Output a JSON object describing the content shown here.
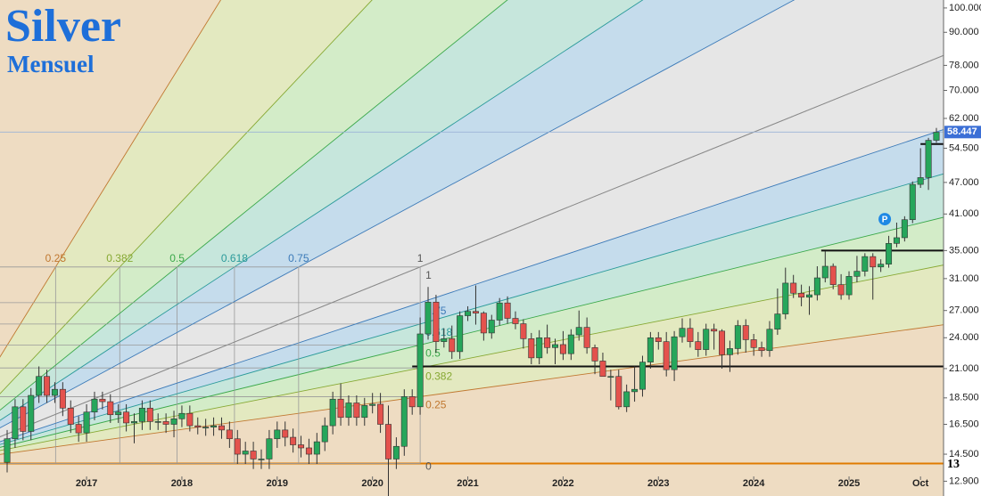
{
  "chart_data": {
    "type": "candlestick",
    "title": "Silver",
    "subtitle": "Mensuel",
    "corner_label": "13",
    "log_y": true,
    "grid": false,
    "up_color": "#26a65b",
    "down_color": "#e4524d",
    "xlim": [
      -0.9,
      117.9
    ],
    "ylim": [
      12.1,
      103.5
    ],
    "xticks": [
      {
        "value": 10,
        "label": "2017"
      },
      {
        "value": 22,
        "label": "2018"
      },
      {
        "value": 34,
        "label": "2019"
      },
      {
        "value": 46,
        "label": "2020"
      },
      {
        "value": 58,
        "label": "2021"
      },
      {
        "value": 70,
        "label": "2022"
      },
      {
        "value": 82,
        "label": "2023"
      },
      {
        "value": 94,
        "label": "2024"
      },
      {
        "value": 106,
        "label": "2025"
      },
      {
        "value": 115,
        "label": "Oct"
      }
    ],
    "yticks": [
      {
        "value": 100,
        "label": "100.000"
      },
      {
        "value": 90,
        "label": "90.000"
      },
      {
        "value": 78,
        "label": "78.000"
      },
      {
        "value": 70,
        "label": "70.000"
      },
      {
        "value": 62,
        "label": "62.000"
      },
      {
        "value": 54.5,
        "label": "54.500"
      },
      {
        "value": 47,
        "label": "47.000"
      },
      {
        "value": 41,
        "label": "41.000"
      },
      {
        "value": 35,
        "label": "35.000"
      },
      {
        "value": 31,
        "label": "31.000"
      },
      {
        "value": 27,
        "label": "27.000"
      },
      {
        "value": 24,
        "label": "24.000"
      },
      {
        "value": 21,
        "label": "21.000"
      },
      {
        "value": 18.5,
        "label": "18.500"
      },
      {
        "value": 16.5,
        "label": "16.500"
      },
      {
        "value": 14.5,
        "label": "14.500"
      },
      {
        "value": 12.9,
        "label": "12.900"
      }
    ],
    "last_price": 58.447,
    "last_price_color": "#3b6fd6",
    "annotation": {
      "text": "P",
      "x": 110.5,
      "y": 40.1,
      "color": "#1e88e5"
    },
    "hlines": [
      {
        "value": 21.2,
        "start": 51
      },
      {
        "value": 35.0,
        "start": 102.5
      },
      {
        "value": 55.5,
        "start": 115
      }
    ],
    "fan": {
      "t0": -9.2,
      "t1": 52,
      "p0": 13.93,
      "p1": 32.6,
      "levels": [
        0,
        0.25,
        0.382,
        0.5,
        0.618,
        0.75,
        1
      ],
      "colors": [
        "#e07b00",
        "#c07830",
        "#86a832",
        "#3aa84a",
        "#2a9a9a",
        "#3c7ab8",
        "#8a8a8a"
      ],
      "band_colors": [
        "#eedcc2",
        "#e3e9c0",
        "#d3ecc8",
        "#c6e6dc",
        "#c5dcec",
        "#e6e6e6"
      ]
    },
    "open": [
      14.0,
      15.5,
      17.8,
      16.0,
      18.7,
      20.3,
      18.7,
      19.2,
      17.7,
      16.5,
      15.9,
      17.4,
      18.4,
      18.2,
      17.2,
      17.4,
      16.6,
      16.7,
      17.7,
      16.7,
      16.7,
      16.5,
      16.9,
      17.3,
      16.4,
      16.3,
      16.3,
      16.4,
      16.1,
      15.5,
      14.5,
      14.7,
      14.2,
      14.2,
      15.5,
      16.1,
      15.6,
      15.1,
      14.9,
      14.5,
      15.3,
      16.4,
      18.4,
      17.0,
      18.1,
      17.0,
      17.9,
      18.0,
      16.5,
      14.2,
      15.0,
      18.6,
      17.8,
      24.4,
      28.0,
      23.6,
      23.9,
      22.6,
      26.4,
      26.9,
      26.7,
      24.5,
      25.9,
      27.9,
      26.1,
      25.5,
      23.9,
      22.0,
      24.0,
      23.0,
      23.3,
      22.4,
      24.3,
      25.1,
      23.0,
      21.7,
      20.3,
      20.3,
      17.8,
      19.0,
      19.2,
      21.6,
      24.0,
      23.6,
      20.9,
      24.1,
      25.0,
      23.6,
      22.8,
      24.9,
      24.7,
      22.3,
      22.9,
      25.3,
      23.8,
      23.0,
      22.7,
      24.9,
      26.6,
      30.4,
      29.1,
      28.6,
      28.9,
      31.1,
      32.7,
      30.2,
      28.9,
      31.3,
      32.0,
      34.1,
      32.6,
      33.0,
      36.1,
      37.0,
      40.0,
      46.6,
      48.0,
      56.4
    ],
    "high": [
      16.1,
      18.4,
      18.4,
      19.3,
      21.2,
      20.9,
      19.8,
      19.8,
      18.3,
      17.1,
      18.0,
      19.0,
      19.0,
      18.8,
      18.0,
      18.0,
      17.3,
      18.3,
      18.3,
      17.3,
      17.3,
      17.5,
      17.9,
      17.9,
      17.0,
      16.9,
      17.0,
      17.0,
      16.7,
      16.1,
      15.3,
      15.3,
      14.8,
      16.1,
      16.7,
      16.7,
      16.2,
      15.7,
      15.5,
      15.9,
      17.0,
      19.0,
      19.7,
      18.7,
      18.7,
      18.5,
      18.9,
      18.9,
      17.9,
      15.6,
      19.2,
      19.2,
      26.2,
      29.9,
      28.9,
      25.0,
      25.3,
      26.9,
      27.5,
      30.1,
      26.9,
      26.5,
      28.5,
      28.7,
      26.9,
      26.0,
      24.5,
      24.8,
      25.4,
      23.9,
      24.7,
      24.9,
      27.0,
      26.2,
      23.3,
      22.5,
      20.9,
      20.9,
      19.6,
      21.2,
      22.2,
      24.6,
      24.6,
      24.6,
      24.7,
      26.1,
      26.1,
      24.6,
      25.5,
      25.5,
      24.9,
      23.7,
      25.9,
      26.0,
      24.4,
      23.6,
      25.8,
      29.7,
      32.5,
      31.5,
      30.2,
      30.0,
      32.7,
      34.9,
      33.1,
      31.6,
      32.0,
      34.2,
      34.6,
      34.6,
      33.7,
      37.3,
      39.5,
      40.6,
      47.2,
      54.5,
      57.0,
      59.5
    ],
    "low": [
      13.4,
      14.9,
      15.4,
      15.4,
      18.1,
      18.1,
      18.1,
      17.1,
      15.9,
      15.3,
      15.3,
      16.8,
      17.6,
      16.6,
      16.6,
      16.0,
      15.2,
      16.1,
      16.1,
      16.1,
      15.9,
      15.6,
      16.3,
      16.0,
      15.8,
      15.7,
      15.7,
      15.5,
      14.9,
      13.9,
      13.9,
      13.6,
      13.6,
      13.6,
      14.9,
      15.0,
      14.6,
      14.3,
      13.9,
      13.9,
      14.7,
      15.8,
      16.4,
      16.4,
      16.4,
      16.4,
      17.3,
      15.9,
      11.6,
      13.6,
      14.4,
      17.2,
      17.2,
      23.8,
      22.5,
      23.0,
      21.9,
      21.9,
      25.8,
      25.4,
      23.7,
      23.9,
      25.3,
      25.5,
      24.9,
      22.9,
      21.4,
      21.4,
      22.4,
      21.4,
      21.8,
      21.8,
      23.7,
      22.4,
      20.5,
      20.3,
      18.3,
      17.6,
      17.4,
      18.2,
      18.6,
      21.0,
      22.8,
      20.3,
      19.9,
      23.5,
      23.0,
      22.1,
      22.2,
      22.8,
      21.0,
      20.7,
      22.3,
      22.5,
      22.2,
      22.1,
      22.1,
      24.3,
      26.0,
      28.5,
      27.5,
      26.5,
      28.2,
      30.5,
      29.6,
      28.3,
      28.3,
      30.5,
      31.3,
      28.3,
      31.9,
      32.5,
      35.5,
      36.4,
      39.4,
      45.9,
      45.5,
      55.8
    ],
    "close": [
      15.5,
      17.8,
      16.0,
      18.7,
      20.3,
      18.7,
      19.2,
      17.7,
      16.5,
      15.9,
      17.4,
      18.4,
      18.2,
      17.2,
      17.4,
      16.6,
      16.7,
      17.7,
      16.7,
      16.7,
      16.5,
      16.9,
      17.3,
      16.4,
      16.3,
      16.3,
      16.4,
      16.1,
      15.5,
      14.5,
      14.7,
      14.2,
      14.2,
      15.5,
      16.1,
      15.6,
      15.1,
      14.9,
      14.5,
      15.3,
      16.4,
      18.4,
      17.0,
      18.1,
      17.0,
      17.9,
      18.0,
      16.5,
      14.2,
      15.0,
      18.6,
      17.8,
      24.4,
      28.0,
      23.6,
      23.9,
      22.6,
      26.4,
      26.9,
      26.7,
      24.5,
      25.9,
      27.9,
      26.1,
      25.5,
      23.9,
      22.0,
      24.0,
      23.0,
      23.3,
      22.4,
      24.3,
      25.1,
      23.0,
      21.7,
      20.3,
      20.3,
      17.8,
      19.0,
      19.2,
      21.6,
      24.0,
      23.6,
      20.9,
      24.1,
      25.0,
      23.6,
      22.8,
      24.9,
      24.7,
      22.3,
      22.9,
      25.3,
      23.8,
      23.0,
      22.7,
      24.9,
      26.6,
      30.4,
      29.1,
      28.6,
      28.9,
      31.1,
      32.7,
      30.2,
      28.9,
      31.3,
      32.0,
      34.1,
      32.6,
      33.0,
      36.1,
      37.0,
      40.0,
      46.6,
      48.0,
      56.4,
      58.4
    ]
  }
}
